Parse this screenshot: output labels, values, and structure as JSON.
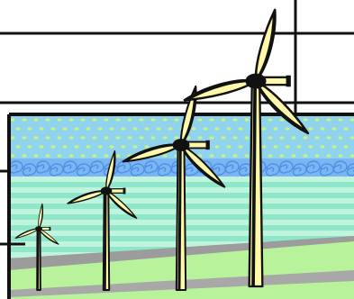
{
  "image": {
    "subject": "wind-turbines-clipart",
    "turbine_count": 4,
    "colors": {
      "sky": "#8FD3EC",
      "sky_dots": "#C8F08C",
      "swirl": "#6CA6F0",
      "stripe_light": "#BFF5DC",
      "stripe_dark": "#8FE6C8",
      "ground_gray": "#9C9C9C",
      "ground_green": "#B8F29A",
      "blade": "#FFF8A8",
      "outline": "#111111",
      "background": "#FFFFFF"
    }
  }
}
